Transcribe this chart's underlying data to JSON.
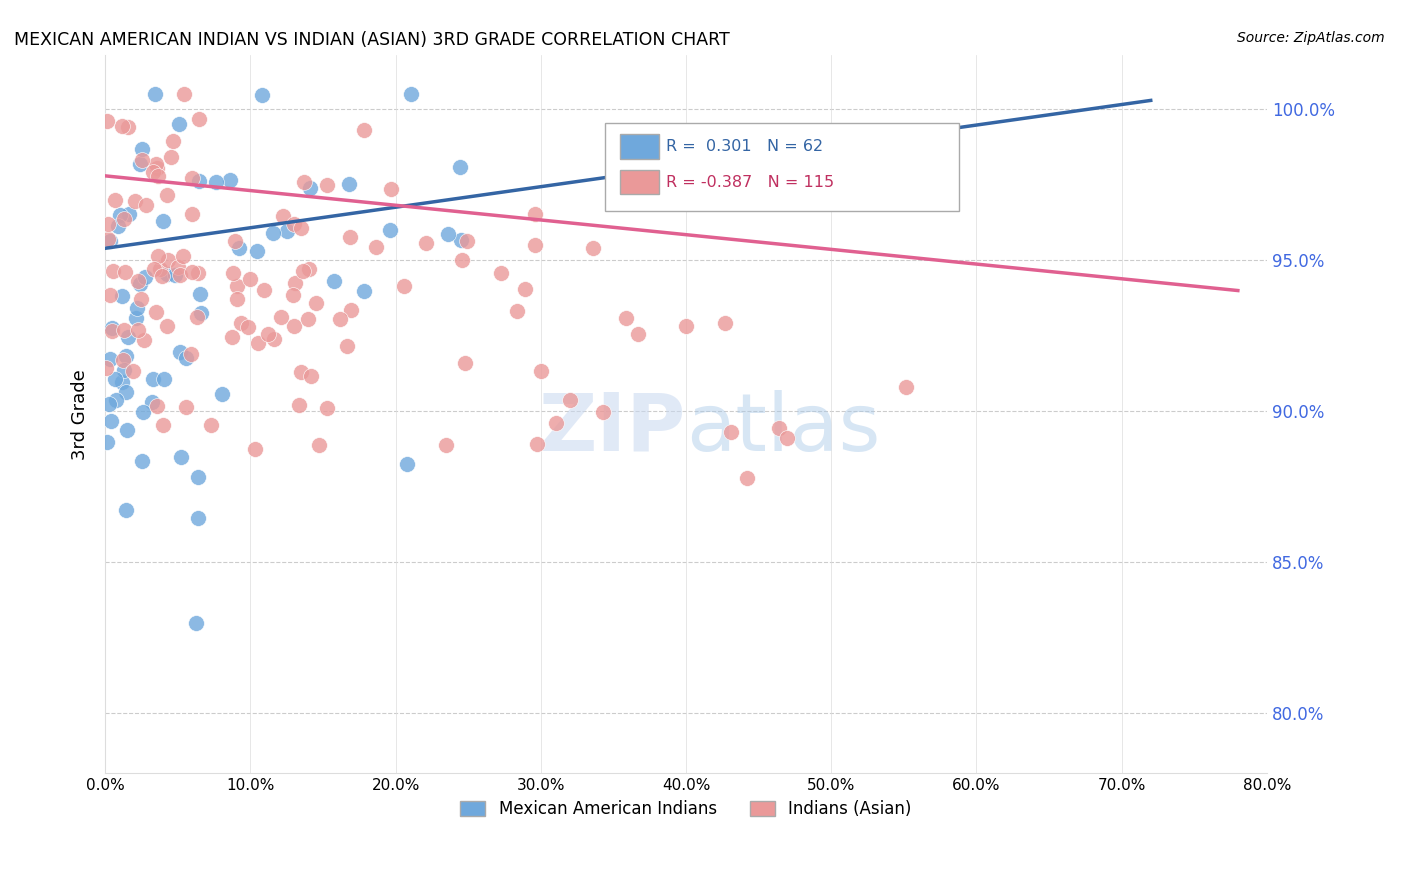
{
  "title": "MEXICAN AMERICAN INDIAN VS INDIAN (ASIAN) 3RD GRADE CORRELATION CHART",
  "source": "Source: ZipAtlas.com",
  "ylabel": "3rd Grade",
  "ytick_labels": [
    "100.0%",
    "95.0%",
    "90.0%",
    "85.0%",
    "80.0%"
  ],
  "ytick_values": [
    1.0,
    0.95,
    0.9,
    0.85,
    0.8
  ],
  "xtick_labels": [
    "0.0%",
    "10.0%",
    "20.0%",
    "30.0%",
    "40.0%",
    "50.0%",
    "60.0%",
    "70.0%",
    "80.0%"
  ],
  "xtick_values": [
    0.0,
    0.1,
    0.2,
    0.3,
    0.4,
    0.5,
    0.6,
    0.7,
    0.8
  ],
  "xlim": [
    0.0,
    0.8
  ],
  "ylim": [
    0.78,
    1.018
  ],
  "legend_r_blue": "0.301",
  "legend_n_blue": "62",
  "legend_r_pink": "-0.387",
  "legend_n_pink": "115",
  "legend_label_blue": "Mexican American Indians",
  "legend_label_pink": "Indians (Asian)",
  "blue_color": "#6fa8dc",
  "pink_color": "#ea9999",
  "trend_blue_color": "#3465a4",
  "trend_pink_color": "#e06090",
  "background_color": "#ffffff",
  "blue_trend_x": [
    0.0,
    0.72
  ],
  "blue_trend_y": [
    0.954,
    1.003
  ],
  "pink_trend_x": [
    0.0,
    0.78
  ],
  "pink_trend_y": [
    0.978,
    0.94
  ],
  "n_blue": 62,
  "n_pink": 115,
  "r_blue": 0.301,
  "r_pink": -0.387,
  "seed": 42
}
